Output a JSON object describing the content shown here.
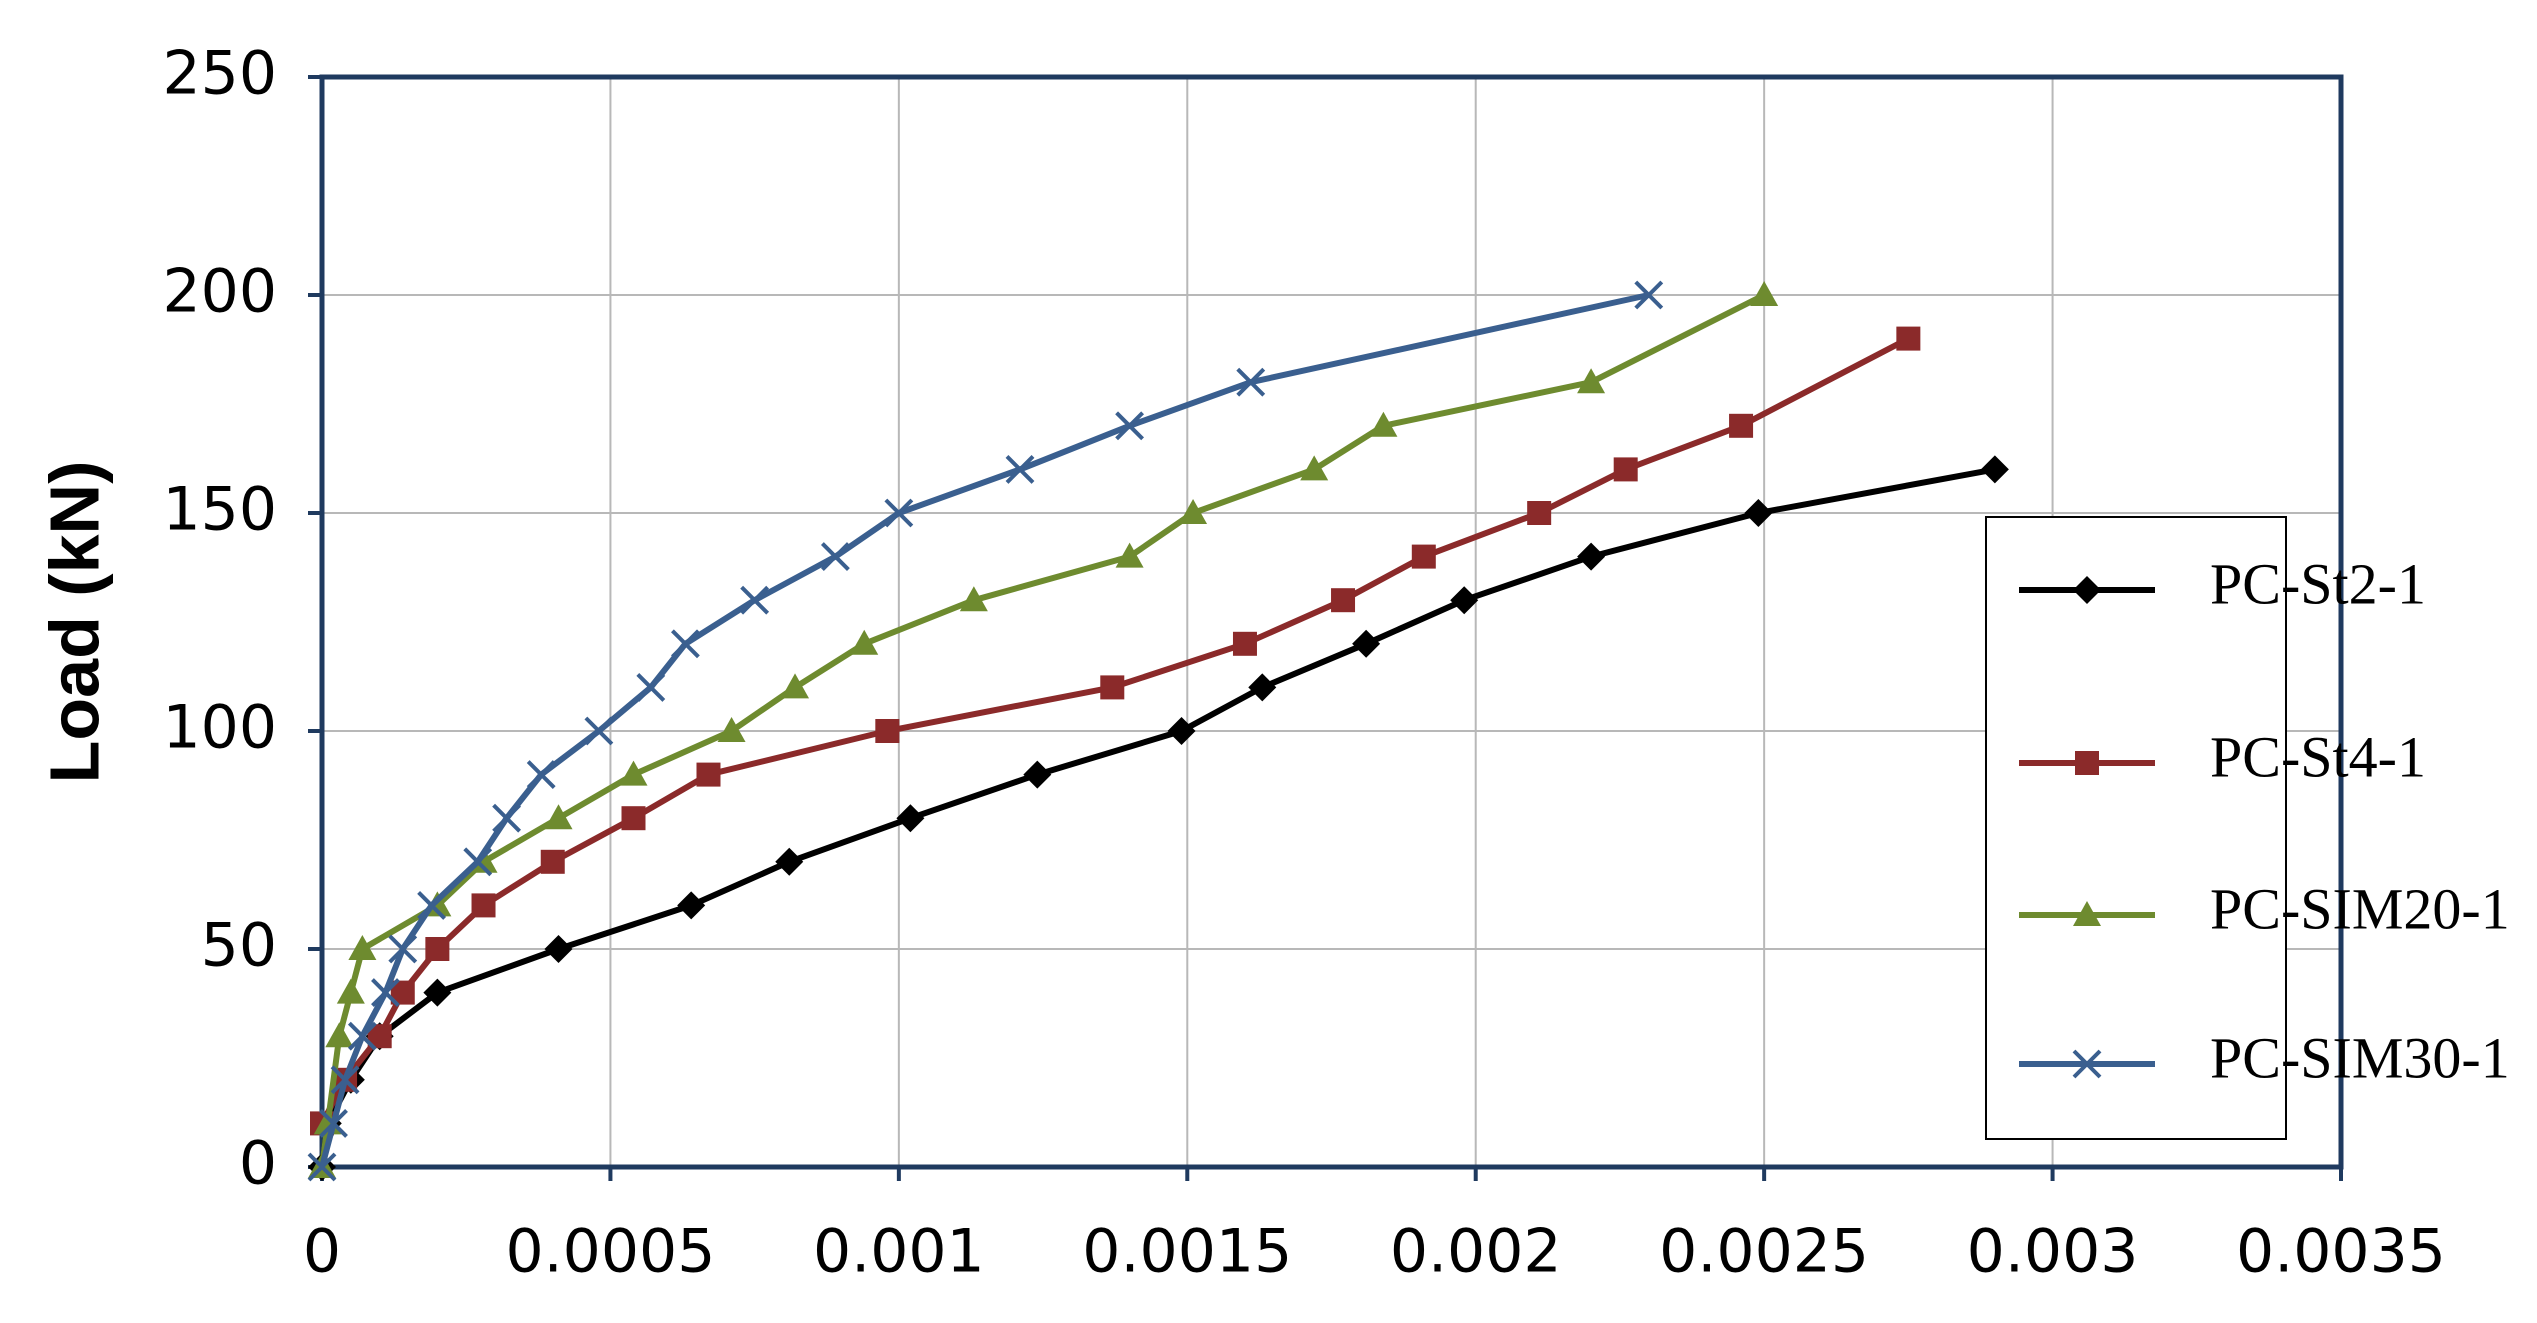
{
  "chart_data": {
    "type": "line",
    "y_label": "Load (kN)",
    "xlim": [
      0,
      0.0035
    ],
    "xticks": [
      0,
      0.0005,
      0.001,
      0.0015,
      0.002,
      0.0025,
      0.003,
      0.0035
    ],
    "ylim": [
      0,
      250
    ],
    "yticks": [
      0,
      50,
      100,
      150,
      200,
      250
    ],
    "grid": true,
    "legend": "right",
    "series": [
      {
        "name": "PC-St2-1",
        "color": "#000000",
        "marker": "diamond",
        "x": [
          0,
          1e-05,
          5e-05,
          0.0001,
          0.0002,
          0.00041,
          0.00064,
          0.00081,
          0.00102,
          0.00124,
          0.00149,
          0.00163,
          0.00181,
          0.00198,
          0.0022,
          0.00249,
          0.0029
        ],
        "values": [
          0,
          10,
          20,
          30,
          40,
          50,
          60,
          70,
          80,
          90,
          100,
          110,
          120,
          130,
          140,
          150,
          160
        ]
      },
      {
        "name": "PC-St4-1",
        "color": "#8b2a2a",
        "marker": "square",
        "x": [
          0,
          4e-05,
          0.0001,
          0.00014,
          0.0002,
          0.00028,
          0.0004,
          0.00054,
          0.00067,
          0.00098,
          0.00137,
          0.0016,
          0.00177,
          0.00191,
          0.00211,
          0.00226,
          0.00246,
          0.00275
        ],
        "values": [
          10,
          20,
          30,
          40,
          50,
          60,
          70,
          80,
          90,
          100,
          110,
          120,
          130,
          140,
          150,
          160,
          170,
          190
        ]
      },
      {
        "name": "PC-SIM20-1",
        "color": "#6e8b2f",
        "marker": "triangle",
        "x": [
          0,
          1e-05,
          3e-05,
          5e-05,
          7e-05,
          0.0002,
          0.00028,
          0.00041,
          0.00054,
          0.00071,
          0.00082,
          0.00094,
          0.00113,
          0.0014,
          0.00151,
          0.00172,
          0.00184,
          0.0022,
          0.0025
        ],
        "values": [
          0,
          10,
          30,
          40,
          50,
          60,
          70,
          80,
          90,
          100,
          110,
          120,
          130,
          140,
          150,
          160,
          170,
          180,
          200
        ]
      },
      {
        "name": "PC-SIM30-1",
        "color": "#3a5f8f",
        "marker": "x",
        "x": [
          0,
          2e-05,
          4e-05,
          7e-05,
          0.00011,
          0.00014,
          0.00019,
          0.00027,
          0.00032,
          0.00038,
          0.00048,
          0.00057,
          0.00063,
          0.00075,
          0.00089,
          0.001,
          0.00121,
          0.0014,
          0.00161,
          0.0023
        ],
        "values": [
          0,
          10,
          20,
          30,
          40,
          50,
          60,
          70,
          80,
          90,
          100,
          110,
          120,
          130,
          140,
          150,
          160,
          170,
          180,
          200
        ]
      }
    ]
  }
}
